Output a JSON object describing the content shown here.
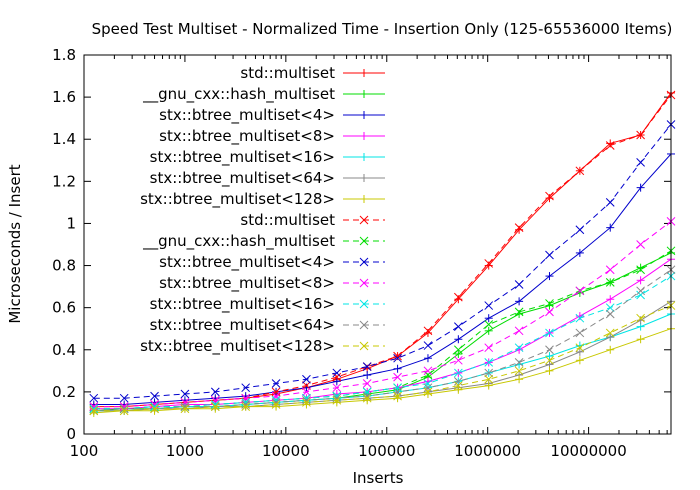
{
  "chart_data": {
    "type": "line",
    "title": "Speed Test Multiset - Normalized Time - Insertion Only (125-65536000 Items)",
    "xlabel": "Inserts",
    "ylabel": "Microseconds / Insert",
    "xscale": "log",
    "xlim": [
      100,
      65536000
    ],
    "ylim": [
      0,
      1.8
    ],
    "xticks": [
      100,
      1000,
      10000,
      100000,
      1000000,
      10000000
    ],
    "xtick_labels": [
      "100",
      "1000",
      "10000",
      "100000",
      "1000000",
      "10000000"
    ],
    "yticks": [
      0,
      0.2,
      0.4,
      0.6,
      0.8,
      1,
      1.2,
      1.4,
      1.6,
      1.8
    ],
    "ytick_labels": [
      "0",
      "0.2",
      "0.4",
      "0.6",
      "0.8",
      "1",
      "1.2",
      "1.4",
      "1.6",
      "1.8"
    ],
    "grid": false,
    "legend_position": "top-left",
    "x": [
      125,
      250,
      500,
      1000,
      2000,
      4000,
      8000,
      16000,
      32000,
      64000,
      128000,
      256000,
      512000,
      1024000,
      2048000,
      4096000,
      8192000,
      16384000,
      32768000,
      65536000
    ],
    "series": [
      {
        "name": "std::multiset",
        "color": "#ff0000",
        "marker": "plus",
        "dashed": false,
        "values": [
          0.13,
          0.13,
          0.14,
          0.15,
          0.16,
          0.17,
          0.19,
          0.22,
          0.26,
          0.31,
          0.37,
          0.48,
          0.64,
          0.8,
          0.97,
          1.12,
          1.25,
          1.38,
          1.42,
          1.62
        ]
      },
      {
        "name": "__gnu_cxx::hash_multiset",
        "color": "#00dd00",
        "marker": "plus",
        "dashed": false,
        "values": [
          0.11,
          0.12,
          0.12,
          0.13,
          0.13,
          0.14,
          0.15,
          0.16,
          0.17,
          0.19,
          0.21,
          0.27,
          0.38,
          0.49,
          0.57,
          0.61,
          0.67,
          0.72,
          0.79,
          0.86
        ]
      },
      {
        "name": "stx::btree_multiset<4>",
        "color": "#0000cc",
        "marker": "plus",
        "dashed": false,
        "values": [
          0.14,
          0.14,
          0.15,
          0.16,
          0.17,
          0.18,
          0.2,
          0.22,
          0.25,
          0.28,
          0.31,
          0.36,
          0.45,
          0.55,
          0.63,
          0.75,
          0.86,
          0.98,
          1.17,
          1.33
        ]
      },
      {
        "name": "stx::btree_multiset<8>",
        "color": "#ff00ff",
        "marker": "plus",
        "dashed": false,
        "values": [
          0.12,
          0.12,
          0.13,
          0.14,
          0.14,
          0.15,
          0.16,
          0.17,
          0.19,
          0.2,
          0.22,
          0.25,
          0.29,
          0.34,
          0.4,
          0.48,
          0.56,
          0.64,
          0.73,
          0.83
        ]
      },
      {
        "name": "stx::btree_multiset<16>",
        "color": "#00e5e5",
        "marker": "plus",
        "dashed": false,
        "values": [
          0.11,
          0.11,
          0.12,
          0.13,
          0.13,
          0.14,
          0.15,
          0.16,
          0.17,
          0.18,
          0.2,
          0.22,
          0.25,
          0.29,
          0.33,
          0.37,
          0.42,
          0.46,
          0.51,
          0.57
        ]
      },
      {
        "name": "stx::btree_multiset<64>",
        "color": "#888888",
        "marker": "plus",
        "dashed": false,
        "values": [
          0.11,
          0.11,
          0.12,
          0.12,
          0.13,
          0.13,
          0.14,
          0.15,
          0.16,
          0.17,
          0.18,
          0.2,
          0.22,
          0.24,
          0.28,
          0.33,
          0.39,
          0.46,
          0.54,
          0.63
        ]
      },
      {
        "name": "stx::btree_multiset<128>",
        "color": "#c8c800",
        "marker": "plus",
        "dashed": false,
        "values": [
          0.1,
          0.11,
          0.11,
          0.12,
          0.12,
          0.13,
          0.13,
          0.14,
          0.15,
          0.16,
          0.17,
          0.19,
          0.21,
          0.23,
          0.26,
          0.3,
          0.35,
          0.4,
          0.45,
          0.5
        ]
      },
      {
        "name": "std::multiset",
        "color": "#ff0000",
        "marker": "cross",
        "dashed": true,
        "values": [
          0.13,
          0.13,
          0.14,
          0.15,
          0.16,
          0.17,
          0.2,
          0.23,
          0.27,
          0.32,
          0.37,
          0.49,
          0.65,
          0.81,
          0.98,
          1.13,
          1.25,
          1.37,
          1.42,
          1.61
        ]
      },
      {
        "name": "__gnu_cxx::hash_multiset",
        "color": "#00dd00",
        "marker": "cross",
        "dashed": true,
        "values": [
          0.12,
          0.12,
          0.13,
          0.13,
          0.14,
          0.15,
          0.16,
          0.17,
          0.18,
          0.2,
          0.22,
          0.28,
          0.4,
          0.52,
          0.58,
          0.62,
          0.68,
          0.72,
          0.78,
          0.87
        ]
      },
      {
        "name": "stx::btree_multiset<4>",
        "color": "#0000cc",
        "marker": "cross",
        "dashed": true,
        "values": [
          0.17,
          0.17,
          0.18,
          0.19,
          0.2,
          0.22,
          0.24,
          0.26,
          0.29,
          0.32,
          0.36,
          0.42,
          0.51,
          0.61,
          0.71,
          0.85,
          0.97,
          1.1,
          1.29,
          1.47
        ]
      },
      {
        "name": "stx::btree_multiset<8>",
        "color": "#ff00ff",
        "marker": "cross",
        "dashed": true,
        "values": [
          0.13,
          0.13,
          0.14,
          0.15,
          0.16,
          0.17,
          0.18,
          0.2,
          0.22,
          0.24,
          0.27,
          0.3,
          0.35,
          0.41,
          0.49,
          0.58,
          0.68,
          0.78,
          0.9,
          1.01
        ]
      },
      {
        "name": "stx::btree_multiset<16>",
        "color": "#00e5e5",
        "marker": "cross",
        "dashed": true,
        "values": [
          0.12,
          0.12,
          0.13,
          0.13,
          0.14,
          0.15,
          0.16,
          0.17,
          0.18,
          0.2,
          0.22,
          0.24,
          0.29,
          0.34,
          0.41,
          0.48,
          0.55,
          0.6,
          0.66,
          0.75
        ]
      },
      {
        "name": "stx::btree_multiset<64>",
        "color": "#888888",
        "marker": "cross",
        "dashed": true,
        "values": [
          0.11,
          0.12,
          0.12,
          0.13,
          0.13,
          0.14,
          0.15,
          0.16,
          0.17,
          0.18,
          0.2,
          0.22,
          0.25,
          0.29,
          0.34,
          0.4,
          0.48,
          0.57,
          0.68,
          0.78
        ]
      },
      {
        "name": "stx::btree_multiset<128>",
        "color": "#c8c800",
        "marker": "cross",
        "dashed": true,
        "values": [
          0.11,
          0.11,
          0.12,
          0.12,
          0.13,
          0.13,
          0.14,
          0.15,
          0.16,
          0.17,
          0.18,
          0.2,
          0.23,
          0.26,
          0.3,
          0.35,
          0.41,
          0.48,
          0.55,
          0.61
        ]
      }
    ]
  }
}
